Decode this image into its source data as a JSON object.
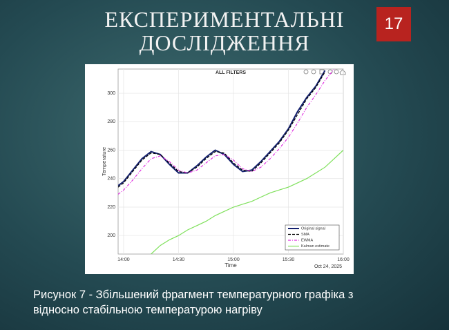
{
  "slide": {
    "title_lines": [
      "ЕКСПЕРИМЕНТАЛЬНІ",
      "ДОСЛІДЖЕННЯ"
    ],
    "page_number": "17",
    "caption_lines": [
      "Рисунок 7 - Збільшений фрагмент температурного графіка з",
      "відносно стабільною температурою нагріву"
    ]
  },
  "chart_data": {
    "type": "line",
    "title": "ALL FILTERS",
    "x_label": "Time",
    "y_label": "Temperature",
    "x_annotation": "Oct 24, 2025",
    "x": [
      "13:57",
      "14:00",
      "14:05",
      "14:10",
      "14:15",
      "14:20",
      "14:25",
      "14:30",
      "14:35",
      "14:40",
      "14:45",
      "14:50",
      "14:55",
      "15:00",
      "15:05",
      "15:10",
      "15:15",
      "15:20",
      "15:25",
      "15:30",
      "15:35",
      "15:40",
      "15:45",
      "15:50",
      "15:55",
      "16:00"
    ],
    "series": [
      {
        "name": "Original signal",
        "color": "#14206e",
        "style": "solid",
        "values": [
          235,
          238,
          246,
          254,
          259,
          257,
          250,
          244,
          244,
          249,
          255,
          260,
          257,
          250,
          245,
          246,
          252,
          259,
          266,
          275,
          287,
          297,
          305,
          316,
          null,
          null
        ]
      },
      {
        "name": "SMA",
        "color": "#000000",
        "style": "dashed",
        "values": [
          234,
          237,
          245,
          253,
          258,
          257,
          251,
          245,
          244,
          248,
          254,
          259,
          258,
          251,
          246,
          245,
          251,
          258,
          265,
          274,
          285,
          296,
          304,
          315,
          null,
          null
        ]
      },
      {
        "name": "EWMA",
        "color": "#e030e0",
        "style": "dashdot",
        "values": [
          229,
          232,
          239,
          247,
          254,
          256,
          252,
          246,
          244,
          246,
          251,
          256,
          257,
          253,
          247,
          245,
          248,
          254,
          261,
          269,
          279,
          290,
          299,
          309,
          317,
          null
        ]
      },
      {
        "name": "Kalman estimate",
        "color": "#7ee05a",
        "style": "solid",
        "values": [
          null,
          null,
          null,
          null,
          187,
          193,
          197,
          200,
          204,
          207,
          210,
          214,
          217,
          220,
          222,
          224,
          227,
          230,
          232,
          234,
          237,
          240,
          244,
          248,
          254,
          260
        ]
      }
    ],
    "xlim": [
      "13:57",
      "16:00"
    ],
    "xticks": [
      "14:00",
      "14:30",
      "15:00",
      "15:30",
      "16:00"
    ],
    "ylim": [
      187,
      317
    ],
    "yticks": [
      200,
      220,
      240,
      260,
      280,
      300
    ],
    "grid": true,
    "legend": "lower right"
  }
}
